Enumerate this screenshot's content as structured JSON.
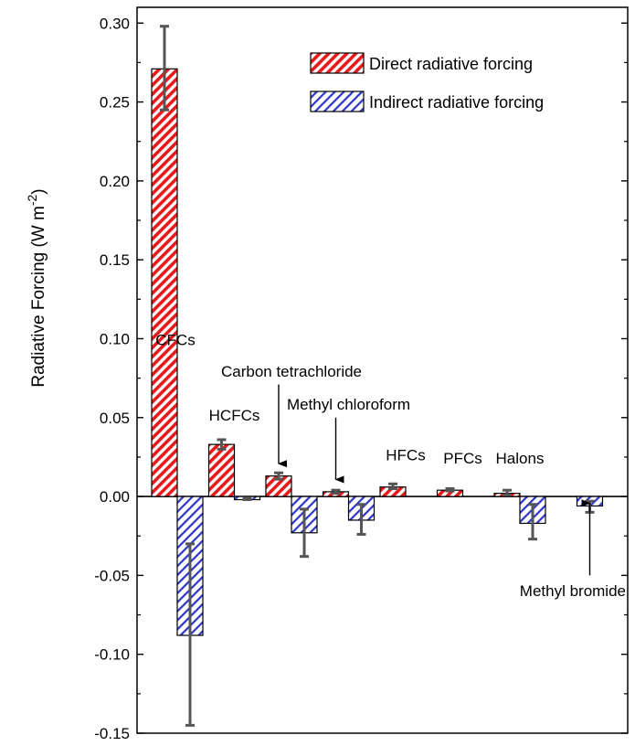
{
  "chart_data": {
    "type": "bar",
    "title": "",
    "xlabel": "",
    "ylabel": "Radiative Forcing   (W m",
    "ylabel_unit_exp": "-2",
    "ylabel_close": ")",
    "ylim": [
      -0.15,
      0.31
    ],
    "yticks": [
      0.3,
      0.25,
      0.2,
      0.15,
      0.1,
      0.05,
      0.0,
      -0.05,
      -0.1,
      -0.15
    ],
    "ytick_labels": [
      "0.30",
      "0.25",
      "0.20",
      "0.15",
      "0.10",
      "0.05",
      "0.00",
      "-0.05",
      "-0.10",
      "-0.15"
    ],
    "grid": false,
    "legend_position": "top-right",
    "categories": [
      "CFCs",
      "HCFCs",
      "Carbon tetrachloride",
      "Methyl chloroform",
      "HFCs",
      "PFCs",
      "Halons",
      "Methyl bromide"
    ],
    "series": [
      {
        "name": "Direct radiative forcing",
        "color": "#e8191a",
        "values": [
          0.271,
          0.033,
          0.013,
          0.003,
          0.006,
          0.004,
          0.002,
          0.0
        ],
        "error_low": [
          0.245,
          0.03,
          0.011,
          0.002,
          0.005,
          0.0035,
          0.001,
          0.0
        ],
        "error_high": [
          0.298,
          0.036,
          0.015,
          0.004,
          0.008,
          0.005,
          0.004,
          0.0
        ]
      },
      {
        "name": "Indirect radiative forcing",
        "color": "#2b35c9",
        "values": [
          -0.088,
          -0.002,
          -0.023,
          -0.015,
          0.0,
          0.0,
          -0.017,
          -0.006
        ],
        "error_low": [
          -0.145,
          -0.002,
          -0.038,
          -0.024,
          0.0,
          0.0,
          -0.027,
          -0.01
        ],
        "error_high": [
          -0.03,
          -0.001,
          -0.008,
          -0.005,
          0.0,
          0.0,
          -0.005,
          -0.003
        ]
      }
    ],
    "annotations": [
      {
        "text": "CFCs",
        "x_index": 0,
        "y": 0.096,
        "arrow": false
      },
      {
        "text": "HCFCs",
        "x_index": 1,
        "y": 0.048,
        "arrow": false
      },
      {
        "text": "Carbon tetrachloride",
        "x_index": 2,
        "y": 0.076,
        "arrow": true,
        "arrow_from": 0.071,
        "arrow_to": 0.015
      },
      {
        "text": "Methyl chloroform",
        "x_index": 3,
        "y": 0.055,
        "arrow": true,
        "arrow_from": 0.05,
        "arrow_to": 0.005
      },
      {
        "text": "HFCs",
        "x_index": 4,
        "y": 0.023,
        "arrow": false
      },
      {
        "text": "PFCs",
        "x_index": 5,
        "y": 0.021,
        "arrow": false
      },
      {
        "text": "Halons",
        "x_index": 6,
        "y": 0.021,
        "arrow": false
      },
      {
        "text": "Methyl bromide",
        "x_index": 7,
        "y": -0.063,
        "arrow": true,
        "arrow_from": -0.05,
        "arrow_to": -0.01
      }
    ]
  }
}
